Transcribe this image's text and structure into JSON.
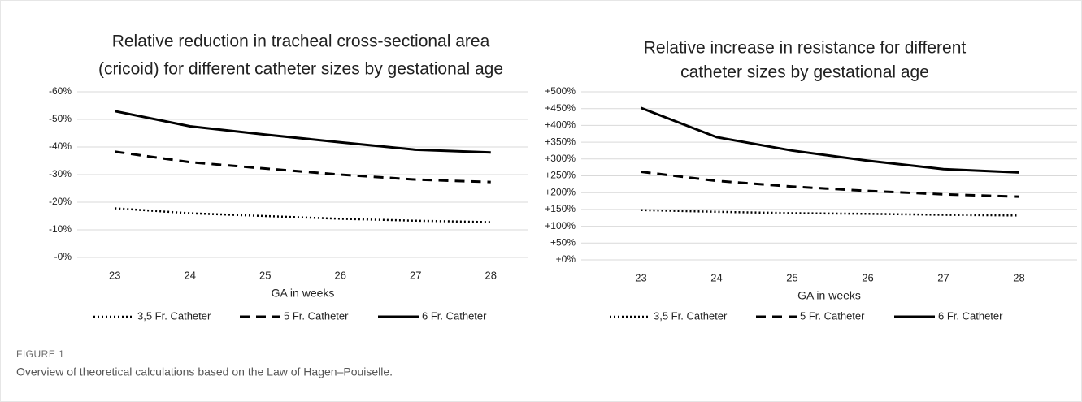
{
  "chart_data": [
    {
      "type": "line",
      "title": [
        "Relative reduction in tracheal cross-sectional area",
        "(cricoid) for different catheter sizes by gestational age"
      ],
      "x_label": "GA in weeks",
      "categories": [
        "23",
        "24",
        "25",
        "26",
        "27",
        "28"
      ],
      "series": [
        {
          "name": "3,5 Fr. Catheter",
          "color": "#000000",
          "line_style": "dotted",
          "values": [
            -17.8,
            -16,
            -15,
            -14,
            -13.3,
            -12.8
          ]
        },
        {
          "name": "5 Fr. Catheter",
          "color": "#000000",
          "line_style": "dashed",
          "values": [
            -38.3,
            -34.5,
            -32.2,
            -30,
            -28.2,
            -27.3
          ]
        },
        {
          "name": "6 Fr. Catheter",
          "color": "#000000",
          "line_style": "solid",
          "values": [
            -53,
            -47.5,
            -44.5,
            -41.7,
            -39,
            -38
          ]
        }
      ],
      "ylim": [
        0,
        -60
      ],
      "yticks": [
        {
          "value": 0,
          "label": "-0%"
        },
        {
          "value": -10,
          "label": "-10%"
        },
        {
          "value": -20,
          "label": "-20%"
        },
        {
          "value": -30,
          "label": "-30%"
        },
        {
          "value": -40,
          "label": "-40%"
        },
        {
          "value": -50,
          "label": "-50%"
        },
        {
          "value": -60,
          "label": "-60%"
        }
      ],
      "grid": true,
      "legend": "bottom"
    },
    {
      "type": "line",
      "title": [
        "Relative increase in resistance for different",
        "catheter sizes by gestational age"
      ],
      "x_label": "GA in weeks",
      "categories": [
        "23",
        "24",
        "25",
        "26",
        "27",
        "28"
      ],
      "series": [
        {
          "name": "3,5 Fr. Catheter",
          "color": "#000000",
          "line_style": "dotted",
          "values": [
            148,
            143,
            139,
            137,
            134,
            132
          ]
        },
        {
          "name": "5 Fr. Catheter",
          "color": "#000000",
          "line_style": "dashed",
          "values": [
            262,
            235,
            218,
            205,
            195,
            188
          ]
        },
        {
          "name": "6 Fr. Catheter",
          "color": "#000000",
          "line_style": "solid",
          "values": [
            452,
            365,
            325,
            295,
            270,
            260
          ]
        }
      ],
      "ylim": [
        0,
        500
      ],
      "yticks": [
        {
          "value": 0,
          "label": "+0%"
        },
        {
          "value": 50,
          "label": "+50%"
        },
        {
          "value": 100,
          "label": "+100%"
        },
        {
          "value": 150,
          "label": "+150%"
        },
        {
          "value": 200,
          "label": "+200%"
        },
        {
          "value": 250,
          "label": "+250%"
        },
        {
          "value": 300,
          "label": "+300%"
        },
        {
          "value": 350,
          "label": "+350%"
        },
        {
          "value": 400,
          "label": "+400%"
        },
        {
          "value": 450,
          "label": "+450%"
        },
        {
          "value": 500,
          "label": "+500%"
        }
      ],
      "grid": true,
      "legend": "bottom"
    }
  ],
  "caption": {
    "label": "FIGURE 1",
    "text": "Overview of theoretical calculations based on the Law of Hagen–Pouiselle."
  }
}
